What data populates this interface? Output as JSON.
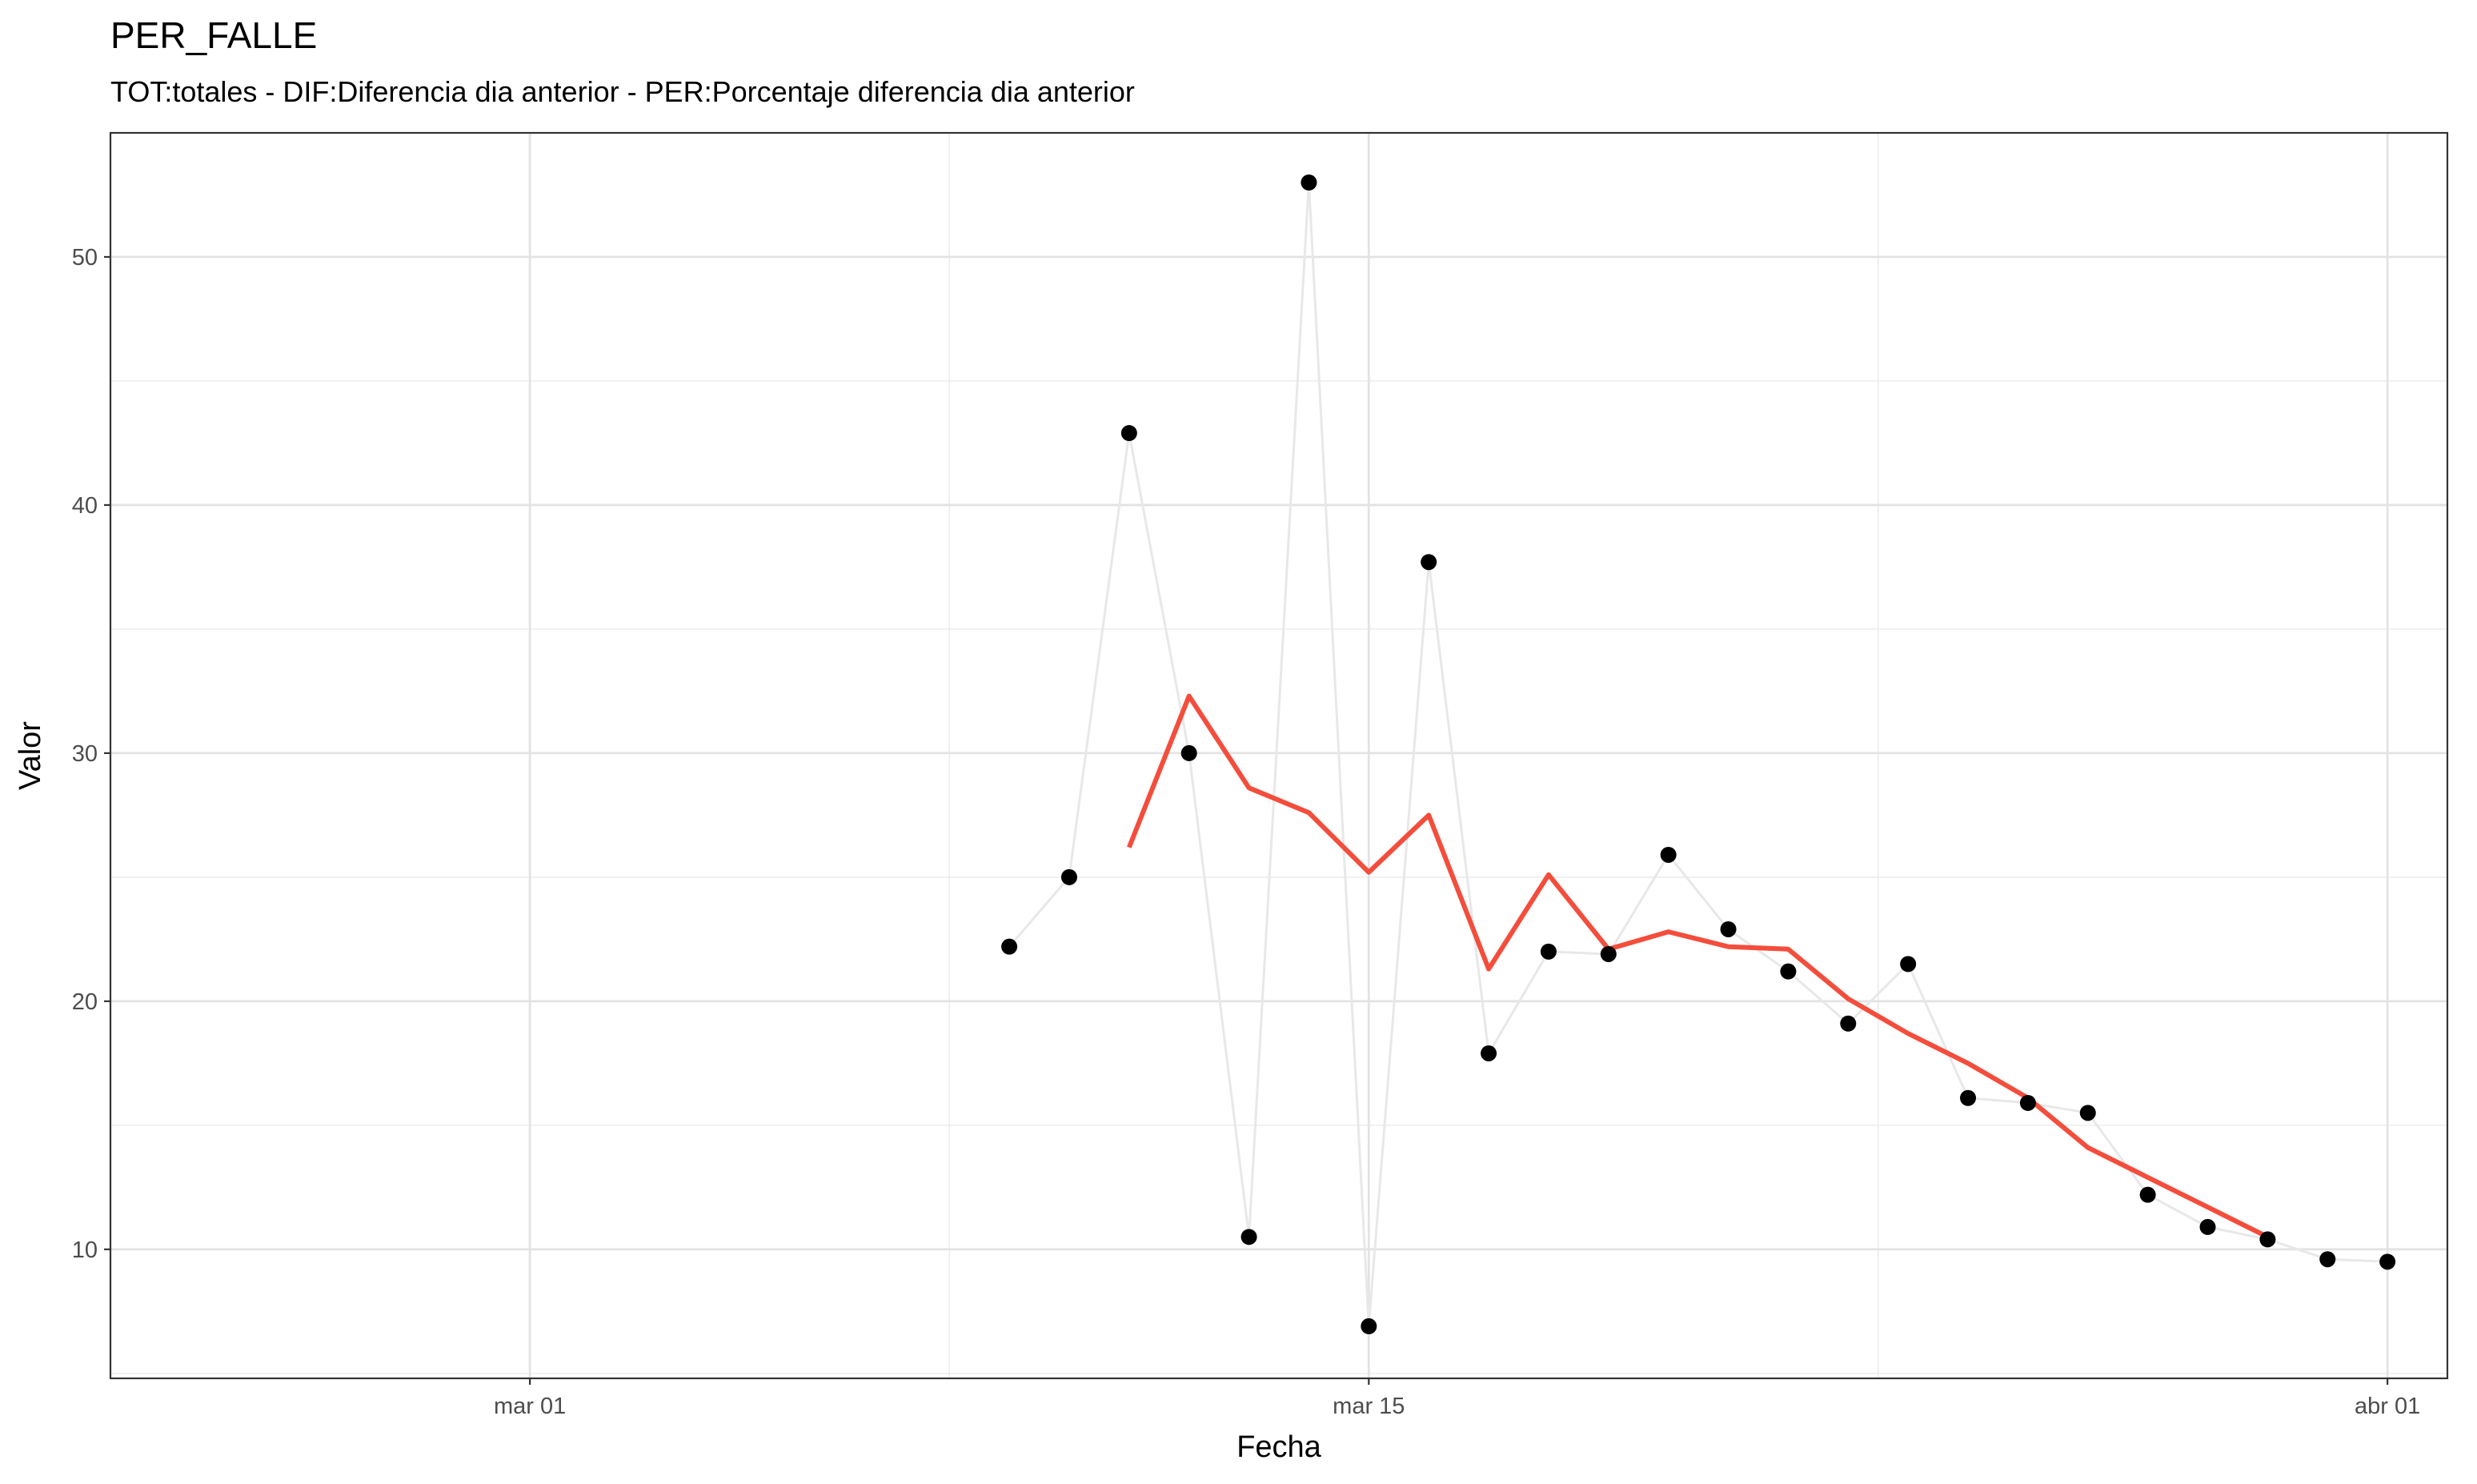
{
  "chart_data": {
    "type": "line",
    "title": "PER_FALLE",
    "subtitle": "TOT:totales - DIF:Diferencia dia anterior - PER:Porcentaje diferencia dia anterior",
    "xlabel": "Fecha",
    "ylabel": "Valor",
    "x_type": "date",
    "xlim": [
      "2020-02-23",
      "2020-04-02"
    ],
    "ylim": [
      4.8,
      55.0
    ],
    "x_ticks": [
      {
        "date": "2020-03-01",
        "label": "mar 01"
      },
      {
        "date": "2020-03-15",
        "label": "mar 15"
      },
      {
        "date": "2020-04-01",
        "label": "abr 01"
      }
    ],
    "y_ticks": [
      10,
      20,
      30,
      40,
      50
    ],
    "grid": true,
    "legend": "none",
    "series": [
      {
        "style": "points-and-line",
        "color": "#000000",
        "line_color": "#e8e8e8",
        "x": [
          "2020-03-09",
          "2020-03-10",
          "2020-03-11",
          "2020-03-12",
          "2020-03-13",
          "2020-03-14",
          "2020-03-15",
          "2020-03-16",
          "2020-03-17",
          "2020-03-18",
          "2020-03-19",
          "2020-03-20",
          "2020-03-21",
          "2020-03-22",
          "2020-03-23",
          "2020-03-24",
          "2020-03-25",
          "2020-03-26",
          "2020-03-27",
          "2020-03-28",
          "2020-03-29",
          "2020-03-30",
          "2020-03-31",
          "2020-04-01"
        ],
        "y": [
          22.2,
          25.0,
          42.9,
          30.0,
          10.5,
          53.0,
          6.9,
          37.7,
          17.9,
          22.0,
          21.9,
          25.9,
          22.9,
          21.2,
          19.1,
          21.5,
          16.1,
          15.9,
          15.5,
          12.2,
          10.9,
          10.4,
          9.6,
          9.5
        ]
      },
      {
        "style": "line",
        "color": "#f44d3c",
        "x": [
          "2020-03-11",
          "2020-03-12",
          "2020-03-13",
          "2020-03-14",
          "2020-03-15",
          "2020-03-16",
          "2020-03-17",
          "2020-03-18",
          "2020-03-19",
          "2020-03-20",
          "2020-03-21",
          "2020-03-22",
          "2020-03-23",
          "2020-03-24",
          "2020-03-25",
          "2020-03-26",
          "2020-03-27",
          "2020-03-28",
          "2020-03-29",
          "2020-03-30"
        ],
        "y": [
          26.2,
          32.3,
          28.6,
          27.6,
          25.2,
          27.5,
          21.3,
          25.1,
          22.1,
          22.8,
          22.2,
          22.1,
          20.1,
          18.7,
          17.5,
          16.1,
          14.1,
          12.9,
          11.7,
          10.5
        ]
      }
    ]
  }
}
